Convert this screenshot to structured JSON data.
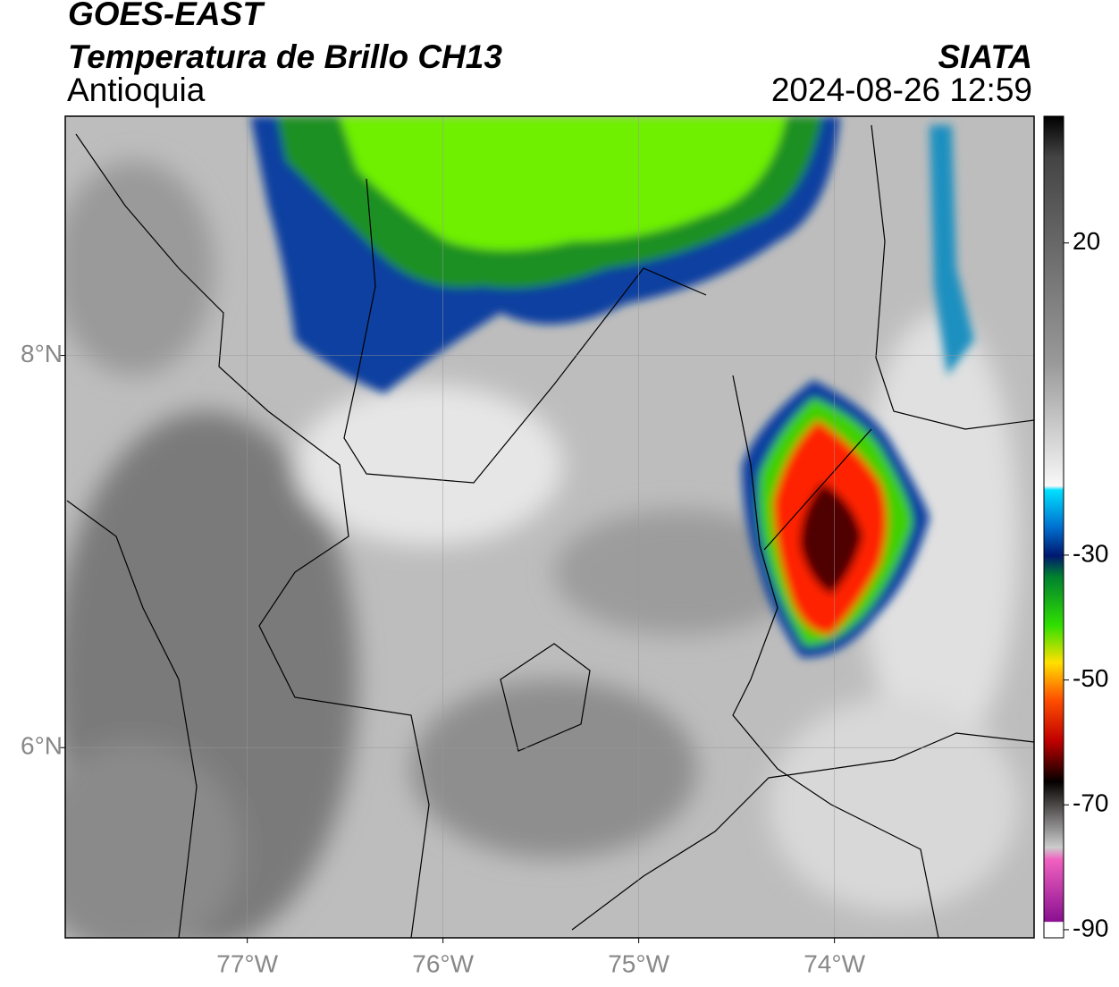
{
  "header": {
    "title": "GOES-EAST",
    "subtitle": "Temperatura de Brillo CH13",
    "region": "Antioquia",
    "source": "SIATA",
    "timestamp": "2024-08-26 12:59"
  },
  "map": {
    "xlim": [
      -77.93,
      -72.98
    ],
    "ylim": [
      5.03,
      9.22
    ],
    "xticks": [
      {
        "value": -77,
        "label": "77°W"
      },
      {
        "value": -76,
        "label": "76°W"
      },
      {
        "value": -75,
        "label": "75°W"
      },
      {
        "value": -74,
        "label": "74°W"
      }
    ],
    "yticks": [
      {
        "value": 6,
        "label": "6°N"
      },
      {
        "value": 8,
        "label": "8°N"
      }
    ],
    "grid": true
  },
  "colorbar": {
    "range": [
      -91.3,
      40.3
    ],
    "ticks": [
      20,
      -30,
      -50,
      -70,
      -90
    ]
  }
}
